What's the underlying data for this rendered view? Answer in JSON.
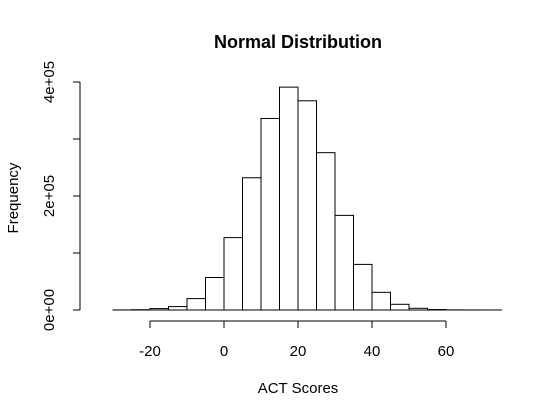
{
  "chart_data": {
    "type": "bar",
    "title": "Normal Distribution",
    "xlabel": "ACT Scores",
    "ylabel": "Frequency",
    "bin_width": 5,
    "bins": [
      {
        "start": -35,
        "end": -30,
        "value": 0
      },
      {
        "start": -30,
        "end": -25,
        "value": 100
      },
      {
        "start": -25,
        "end": -20,
        "value": 500
      },
      {
        "start": -20,
        "end": -15,
        "value": 2500
      },
      {
        "start": -15,
        "end": -10,
        "value": 6000
      },
      {
        "start": -10,
        "end": -5,
        "value": 20000
      },
      {
        "start": -5,
        "end": 0,
        "value": 57000
      },
      {
        "start": 0,
        "end": 5,
        "value": 127000
      },
      {
        "start": 5,
        "end": 10,
        "value": 232000
      },
      {
        "start": 10,
        "end": 15,
        "value": 336000
      },
      {
        "start": 15,
        "end": 20,
        "value": 391000
      },
      {
        "start": 20,
        "end": 25,
        "value": 367000
      },
      {
        "start": 25,
        "end": 30,
        "value": 276000
      },
      {
        "start": 30,
        "end": 35,
        "value": 166000
      },
      {
        "start": 35,
        "end": 40,
        "value": 80000
      },
      {
        "start": 40,
        "end": 45,
        "value": 31000
      },
      {
        "start": 45,
        "end": 50,
        "value": 10000
      },
      {
        "start": 50,
        "end": 55,
        "value": 3000
      },
      {
        "start": 55,
        "end": 60,
        "value": 800
      },
      {
        "start": 60,
        "end": 65,
        "value": 200
      },
      {
        "start": 65,
        "end": 70,
        "value": 50
      },
      {
        "start": 70,
        "end": 75,
        "value": 10
      }
    ],
    "x_ticks": [
      -20,
      0,
      20,
      40,
      60
    ],
    "x_tick_labels": [
      "-20",
      "0",
      "20",
      "40",
      "60"
    ],
    "y_ticks": [
      0,
      100000,
      200000,
      300000,
      400000
    ],
    "y_tick_labels": [
      "0e+00",
      "",
      "2e+05",
      "",
      "4e+05"
    ],
    "xlim": [
      -35,
      75
    ],
    "ylim": [
      0,
      400000
    ],
    "grid": false,
    "colors": {
      "bar_fill": "#ffffff",
      "bar_stroke": "#000000"
    }
  }
}
